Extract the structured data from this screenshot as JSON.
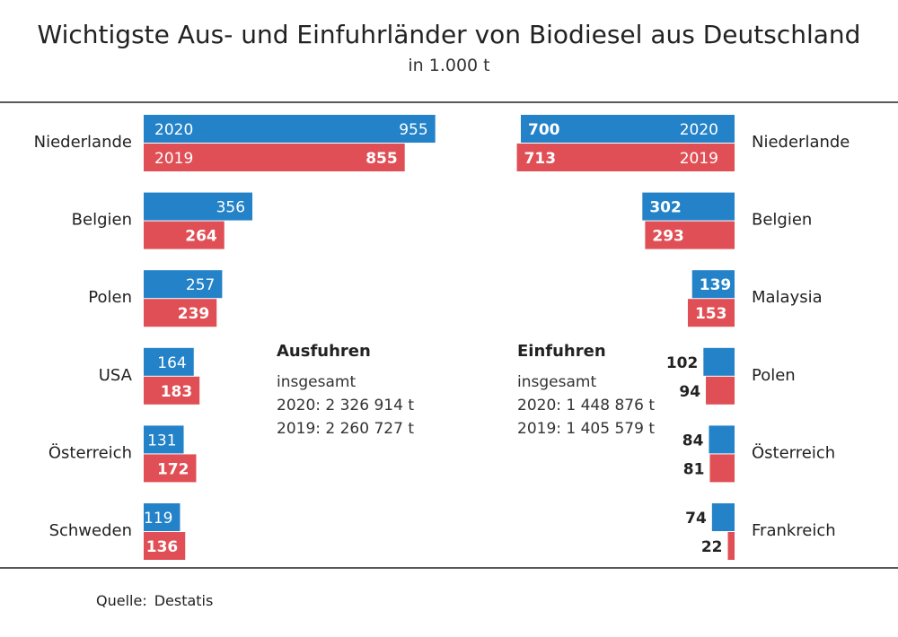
{
  "header": {
    "title": "Wichtigste Aus- und Einfuhrländer von Biodiesel aus Deutschland",
    "subtitle": "in 1.000 t"
  },
  "footer": {
    "source_label": "Quelle:",
    "source_value": "Destatis"
  },
  "colors": {
    "y2020": "#2382c8",
    "y2019": "#e04f55"
  },
  "chart_data": [
    {
      "type": "bar",
      "orientation": "horizontal",
      "title": "Ausfuhren",
      "categories": [
        "Niederlande",
        "Belgien",
        "Polen",
        "USA",
        "Österreich",
        "Schweden"
      ],
      "series": [
        {
          "name": "2020",
          "values": [
            955,
            356,
            257,
            164,
            131,
            119
          ]
        },
        {
          "name": "2019",
          "values": [
            855,
            264,
            239,
            183,
            172,
            136
          ]
        }
      ],
      "note": {
        "heading": "Ausfuhren",
        "line1": "insgesamt",
        "line2": "2020: 2 326 914 t",
        "line3": "2019: 2 260 727 t"
      }
    },
    {
      "type": "bar",
      "orientation": "horizontal",
      "title": "Einfuhren",
      "categories": [
        "Niederlande",
        "Belgien",
        "Malaysia",
        "Polen",
        "Österreich",
        "Frankreich"
      ],
      "series": [
        {
          "name": "2020",
          "values": [
            700,
            302,
            139,
            102,
            84,
            74
          ]
        },
        {
          "name": "2019",
          "values": [
            713,
            293,
            153,
            94,
            81,
            22
          ]
        }
      ],
      "note": {
        "heading": "Einfuhren",
        "line1": "insgesamt",
        "line2": "2020: 1 448 876 t",
        "line3": "2019: 1 405 579 t"
      }
    }
  ]
}
